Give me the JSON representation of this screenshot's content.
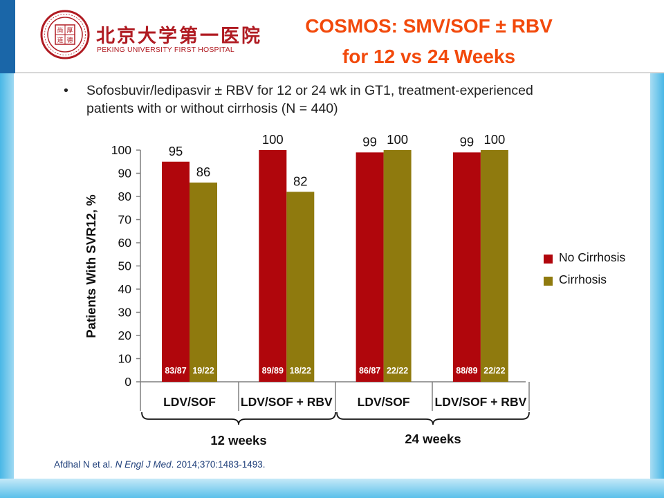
{
  "header": {
    "logo_cn": "北京大学第一医院",
    "logo_en": "PEKING UNIVERSITY FIRST HOSPITAL",
    "logo_seal_text": "尚厚道德",
    "title_line1": "COSMOS: SMV/SOF ± RBV",
    "title_line2": "for 12 vs 24 Weeks"
  },
  "bullet": {
    "symbol": "•",
    "line1": "Sofosbuvir/ledipasvir ± RBV for 12 or 24 wk in GT1, treatment-experienced",
    "line2": "patients  with or without cirrhosis (N = 440)"
  },
  "citation": {
    "authors": "Afdhal N et al. ",
    "journal": "N Engl J Med",
    "details": ". 2014;370:1483-1493."
  },
  "colors": {
    "no_cirrhosis": "#b0060c",
    "cirrhosis": "#8f7a0e",
    "title": "#f2490b"
  },
  "chart_data": {
    "type": "bar",
    "ylabel": "Patients With SVR12, %",
    "ylim": [
      0,
      100
    ],
    "yticks": [
      0,
      10,
      20,
      30,
      40,
      50,
      60,
      70,
      80,
      90,
      100
    ],
    "categories": [
      "LDV/SOF",
      "LDV/SOF + RBV",
      "LDV/SOF",
      "LDV/SOF + RBV"
    ],
    "groups": [
      {
        "label": "12 weeks",
        "categories": [
          0,
          1
        ]
      },
      {
        "label": "24 weeks",
        "categories": [
          2,
          3
        ]
      }
    ],
    "series": [
      {
        "name": "No Cirrhosis",
        "values": [
          95,
          100,
          99,
          99
        ],
        "counts": [
          "83/87",
          "89/89",
          "86/87",
          "88/89"
        ]
      },
      {
        "name": "Cirrhosis",
        "values": [
          86,
          82,
          100,
          100
        ],
        "counts": [
          "19/22",
          "18/22",
          "22/22",
          "22/22"
        ]
      }
    ],
    "legend_position": "right",
    "grid": false
  }
}
